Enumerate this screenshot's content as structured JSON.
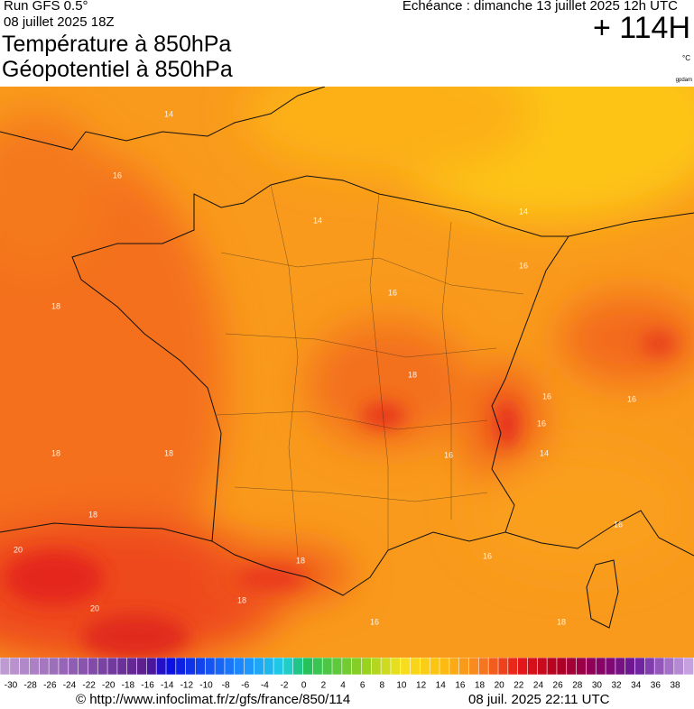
{
  "header": {
    "run": "Run GFS 0.5°",
    "run_date": "08 juillet 2025 18Z",
    "forecast": "Echéance : dimanche 13 juillet 2025 12h UTC",
    "lead": "+ 114H",
    "title_1": "Température à 850hPa",
    "title_2": "Géopotentiel à 850hPa",
    "unit": "°C",
    "unit_2": "gpdam"
  },
  "map": {
    "contour_labels": [
      14,
      16,
      18,
      18,
      18,
      18,
      20,
      20,
      14,
      16,
      18,
      14,
      16,
      16,
      16,
      16,
      14,
      16,
      16,
      18,
      18,
      16,
      18,
      16
    ]
  },
  "colorbar": {
    "ticks": [
      -30,
      -28,
      -26,
      -24,
      -22,
      -20,
      -18,
      -16,
      -14,
      -12,
      -10,
      -8,
      -6,
      -4,
      -2,
      0,
      2,
      4,
      6,
      8,
      10,
      12,
      14,
      16,
      18,
      20,
      22,
      24,
      26,
      28,
      30,
      32,
      34,
      36,
      38
    ]
  },
  "footer": {
    "url": "© http://www.infoclimat.fr/z/gfs/france/850/114",
    "timestamp": "08 juil. 2025 22:11 UTC"
  }
}
